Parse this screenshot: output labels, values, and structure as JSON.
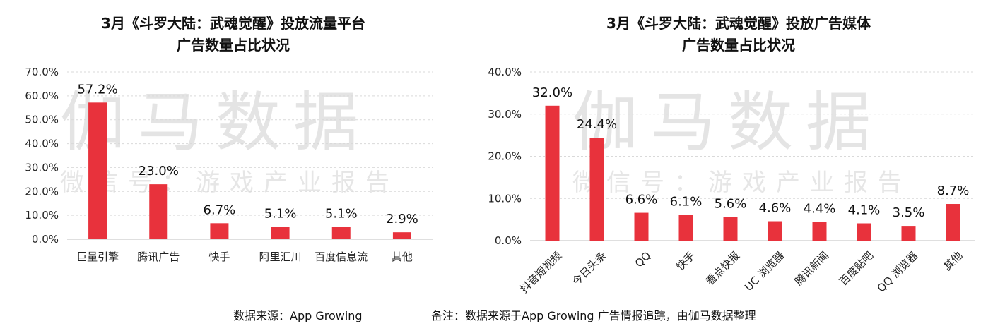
{
  "chart_data": [
    {
      "type": "bar",
      "title": "3月《斗罗大陆：武魂觉醒》投放流量平台",
      "subtitle": "广告数量占比状况",
      "categories": [
        "巨量引擎",
        "腾讯广告",
        "快手",
        "阿里汇川",
        "百度信息流",
        "其他"
      ],
      "values": [
        57.2,
        23.0,
        6.7,
        5.1,
        5.1,
        2.9
      ],
      "data_labels": [
        "57.2%",
        "23.0%",
        "6.7%",
        "5.1%",
        "5.1%",
        "2.9%"
      ],
      "ylim": [
        0,
        70
      ],
      "yticks": [
        0,
        10,
        20,
        30,
        40,
        50,
        60,
        70
      ],
      "ytick_labels": [
        "0.0%",
        "10.0%",
        "20.0%",
        "30.0%",
        "40.0%",
        "50.0%",
        "60.0%",
        "70.0%"
      ],
      "grid": true,
      "xlabel": "",
      "ylabel": ""
    },
    {
      "type": "bar",
      "title": "3月《斗罗大陆：武魂觉醒》投放广告媒体",
      "subtitle": "广告数量占比状况",
      "categories": [
        "抖音短视频",
        "今日头条",
        "QQ",
        "快手",
        "看点快报",
        "UC 浏览器",
        "腾讯新闻",
        "百度贴吧",
        "QQ 浏览器",
        "其他"
      ],
      "values": [
        32.0,
        24.4,
        6.6,
        6.1,
        5.6,
        4.6,
        4.4,
        4.1,
        3.5,
        8.7
      ],
      "data_labels": [
        "32.0%",
        "24.4%",
        "6.6%",
        "6.1%",
        "5.6%",
        "4.6%",
        "4.4%",
        "4.1%",
        "3.5%",
        "8.7%"
      ],
      "ylim": [
        0,
        40
      ],
      "yticks": [
        0,
        10,
        20,
        30,
        40
      ],
      "ytick_labels": [
        "0.0%",
        "10.0%",
        "20.0%",
        "30.0%",
        "40.0%"
      ],
      "grid": true,
      "xlabel": "",
      "ylabel": ""
    }
  ],
  "colors": {
    "bar": "#e8323c",
    "grid": "#d9d9d9",
    "axis": "#bfbfbf",
    "watermark": "#e4e4e4"
  },
  "watermark": {
    "main": "伽马数据",
    "sub": "微信号：游戏产业报告"
  },
  "footer": {
    "source": "数据来源：App Growing",
    "note": "备注：数据来源于App Growing 广告情报追踪，由伽马数据整理"
  }
}
